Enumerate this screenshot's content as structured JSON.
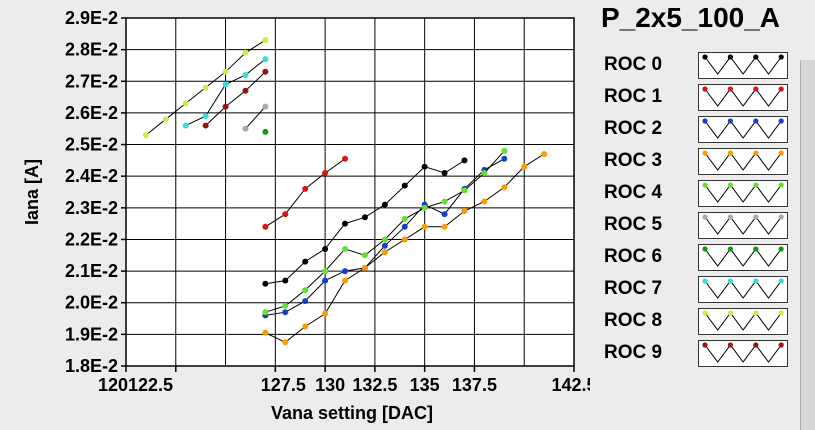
{
  "chart_data": {
    "type": "scatter",
    "title": "P_2x5_100_A",
    "xlabel": "Vana setting [DAC]",
    "ylabel": "Iana [A]",
    "xlim": [
      120,
      142.5
    ],
    "ylim": [
      0.018,
      0.029
    ],
    "x_ticks": [
      "120",
      "122.5",
      "127.5",
      "130",
      "132.5",
      "135",
      "137.5",
      "142.5"
    ],
    "x_tick_values": [
      120,
      122.5,
      127.5,
      130,
      132.5,
      135,
      137.5,
      142.5
    ],
    "y_ticks": [
      "1.8E-2",
      "1.9E-2",
      "2.0E-2",
      "2.1E-2",
      "2.2E-2",
      "2.3E-2",
      "2.4E-2",
      "2.5E-2",
      "2.6E-2",
      "2.7E-2",
      "2.8E-2",
      "2.9E-2"
    ],
    "y_tick_values": [
      0.018,
      0.019,
      0.02,
      0.021,
      0.022,
      0.023,
      0.024,
      0.025,
      0.026,
      0.027,
      0.028,
      0.029
    ],
    "grid": true,
    "legend_placement": "right",
    "series": [
      {
        "name": "ROC 0",
        "color": "#000000",
        "x": [
          127,
          128,
          129,
          130,
          131,
          132,
          133,
          134,
          135,
          136,
          137
        ],
        "y": [
          0.0206,
          0.0207,
          0.0213,
          0.0217,
          0.0225,
          0.0227,
          0.0231,
          0.0237,
          0.0243,
          0.0241,
          0.0245
        ]
      },
      {
        "name": "ROC 1",
        "color": "#dd1111",
        "x": [
          127,
          128,
          129,
          130,
          131
        ],
        "y": [
          0.0224,
          0.0228,
          0.0236,
          0.0241,
          0.02455
        ]
      },
      {
        "name": "ROC 2",
        "color": "#1040cc",
        "x": [
          127,
          128,
          129,
          130,
          131,
          132,
          133,
          134,
          135,
          136,
          137,
          138,
          139
        ],
        "y": [
          0.0196,
          0.0197,
          0.02005,
          0.0207,
          0.021,
          0.0211,
          0.0218,
          0.0224,
          0.0231,
          0.0228,
          0.0236,
          0.0242,
          0.02455
        ]
      },
      {
        "name": "ROC 3",
        "color": "#ff9900",
        "x": [
          127,
          128,
          129,
          130,
          131,
          132,
          133,
          134,
          135,
          136,
          137,
          138,
          139,
          140,
          141
        ],
        "y": [
          0.01905,
          0.01875,
          0.01925,
          0.01965,
          0.0207,
          0.0211,
          0.0216,
          0.022,
          0.0224,
          0.0224,
          0.0229,
          0.0232,
          0.02365,
          0.0243,
          0.0247
        ]
      },
      {
        "name": "ROC 4",
        "color": "#66dd33",
        "x": [
          127,
          128,
          129,
          130,
          131,
          132,
          133,
          134,
          135,
          136,
          137,
          138,
          139
        ],
        "y": [
          0.0197,
          0.0199,
          0.0204,
          0.021,
          0.0217,
          0.0215,
          0.022,
          0.02265,
          0.023,
          0.0232,
          0.02355,
          0.0241,
          0.0248
        ]
      },
      {
        "name": "ROC 5",
        "color": "#aaaaaa",
        "x": [
          126,
          127
        ],
        "y": [
          0.0255,
          0.0262
        ]
      },
      {
        "name": "ROC 6",
        "color": "#119911",
        "x": [
          127
        ],
        "y": [
          0.0254
        ]
      },
      {
        "name": "ROC 7",
        "color": "#33dddd",
        "x": [
          123,
          124,
          125,
          126,
          127
        ],
        "y": [
          0.0256,
          0.0259,
          0.0269,
          0.0272,
          0.0277
        ]
      },
      {
        "name": "ROC 8",
        "color": "#ccee44",
        "x": [
          121,
          122,
          123,
          124,
          125,
          126,
          127
        ],
        "y": [
          0.0253,
          0.0258,
          0.0263,
          0.0268,
          0.0273,
          0.0279,
          0.0283
        ]
      },
      {
        "name": "ROC 9",
        "color": "#991111",
        "x": [
          124,
          125,
          126,
          127
        ],
        "y": [
          0.0256,
          0.0262,
          0.0267,
          0.0273
        ]
      }
    ]
  }
}
